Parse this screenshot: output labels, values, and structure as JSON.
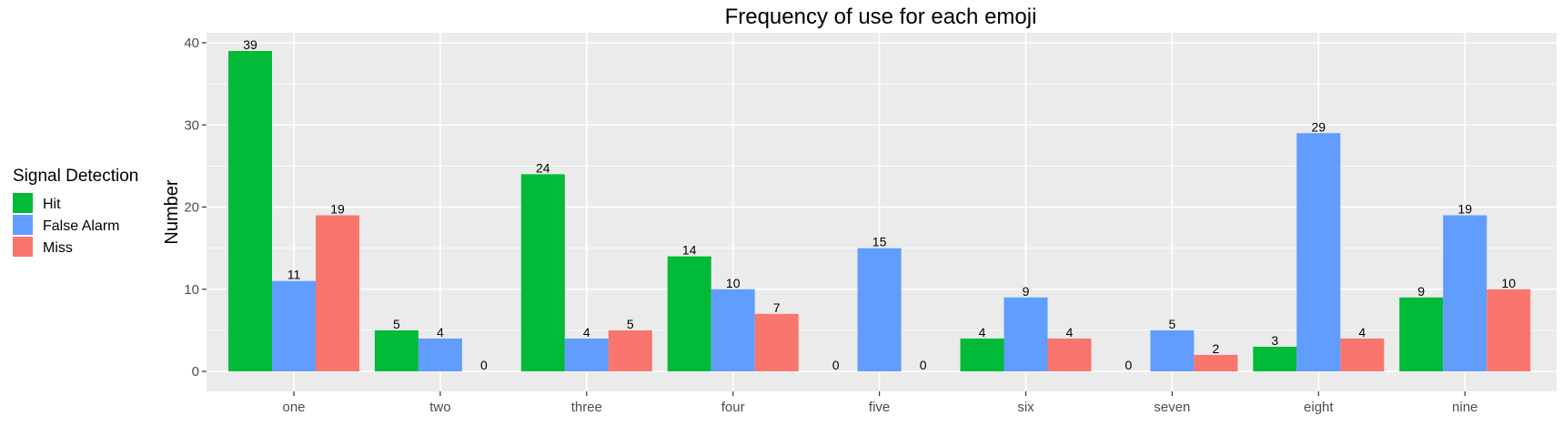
{
  "chart_data": {
    "type": "bar",
    "title": "Frequency of use for each emoji",
    "xlabel": "",
    "ylabel": "Number",
    "ylim": [
      0,
      40
    ],
    "yticks": [
      0,
      10,
      20,
      30,
      40
    ],
    "grid": true,
    "legend": {
      "title": "Signal Detection",
      "position": "left"
    },
    "categories": [
      "one",
      "two",
      "three",
      "four",
      "five",
      "six",
      "seven",
      "eight",
      "nine"
    ],
    "series": [
      {
        "name": "Hit",
        "color": "#00BA38",
        "values": [
          39,
          5,
          24,
          14,
          0,
          4,
          0,
          3,
          9
        ]
      },
      {
        "name": "False Alarm",
        "color": "#619CFF",
        "values": [
          11,
          4,
          4,
          10,
          15,
          9,
          5,
          29,
          19
        ]
      },
      {
        "name": "Miss",
        "color": "#F8766D",
        "values": [
          19,
          0,
          5,
          7,
          0,
          4,
          2,
          4,
          10
        ]
      }
    ]
  }
}
